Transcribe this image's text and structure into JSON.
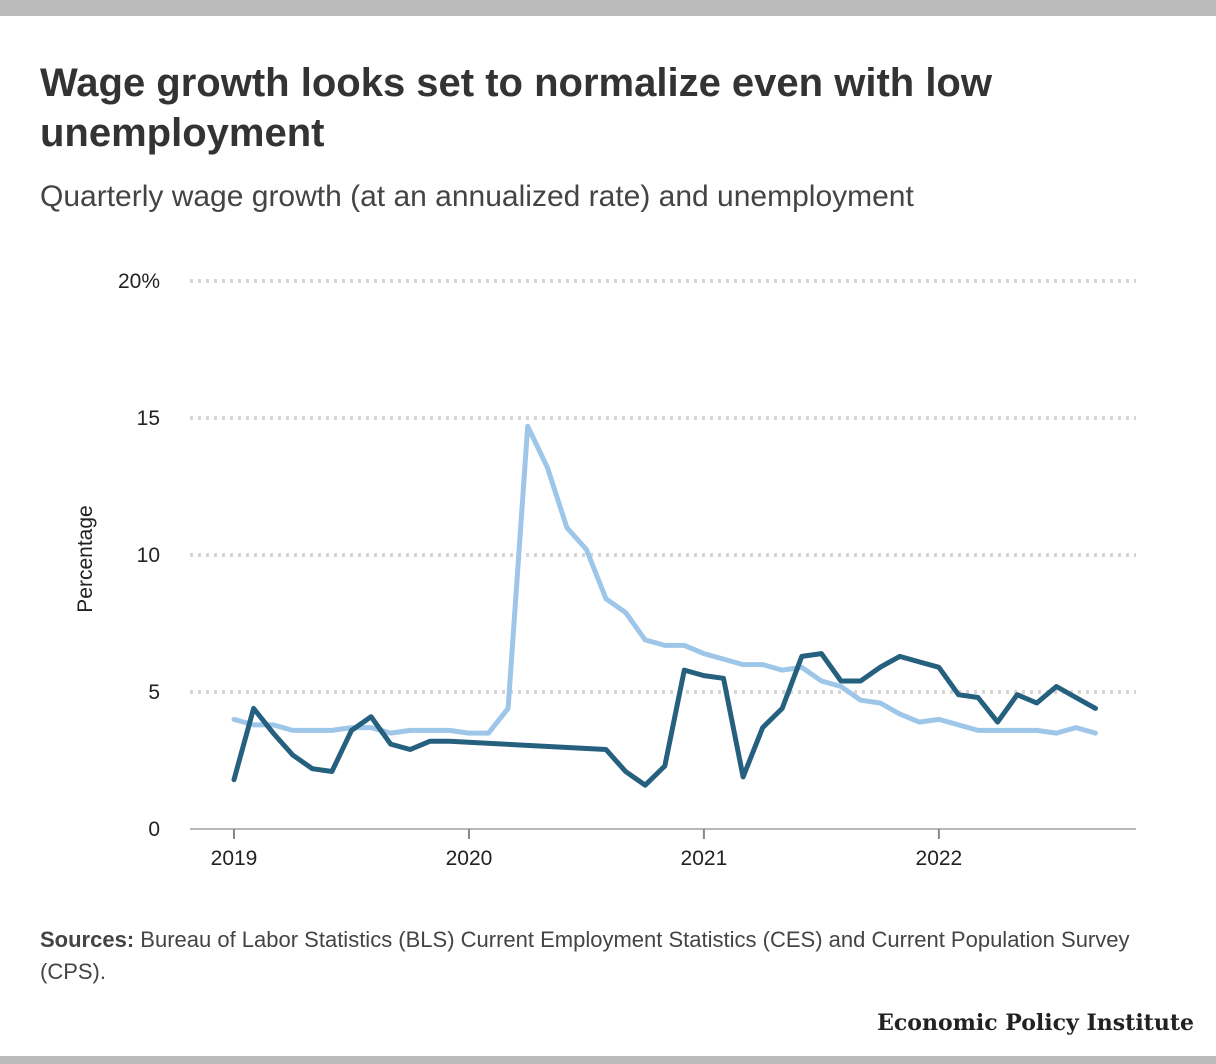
{
  "header": {
    "title": "Wage growth looks set to normalize even with low unemployment",
    "subtitle": "Quarterly wage growth (at an annualized rate) and unemployment"
  },
  "footer": {
    "sources_label": "Sources:",
    "sources_text": "Bureau of Labor Statistics (BLS) Current Employment Statistics (CES) and Current Population Survey (CPS).",
    "brand": "Economic Policy Institute"
  },
  "chart_data": {
    "type": "line",
    "title": "Wage growth looks set to normalize even with low unemployment",
    "subtitle": "Quarterly wage growth (at an annualized rate) and unemployment",
    "xlabel": "",
    "ylabel": "Percentage",
    "ylim": [
      0,
      20
    ],
    "yticks": [
      0,
      5,
      10,
      15,
      20
    ],
    "ytick_labels": [
      "0",
      "5",
      "10",
      "15",
      "20%"
    ],
    "xlim": [
      "2018-12",
      "2022-12"
    ],
    "xticks": [
      "2019-01",
      "2020-01",
      "2021-01",
      "2022-01"
    ],
    "xtick_labels": [
      "2019",
      "2020",
      "2021",
      "2022"
    ],
    "grid": true,
    "legend": "none",
    "series": [
      {
        "color": "#9dc6e8",
        "points": [
          [
            "2019-01",
            4.0
          ],
          [
            "2019-02",
            3.8
          ],
          [
            "2019-03",
            3.8
          ],
          [
            "2019-04",
            3.6
          ],
          [
            "2019-05",
            3.6
          ],
          [
            "2019-06",
            3.6
          ],
          [
            "2019-07",
            3.7
          ],
          [
            "2019-08",
            3.7
          ],
          [
            "2019-09",
            3.5
          ],
          [
            "2019-10",
            3.6
          ],
          [
            "2019-11",
            3.6
          ],
          [
            "2019-12",
            3.6
          ],
          [
            "2020-01",
            3.5
          ],
          [
            "2020-02",
            3.5
          ],
          [
            "2020-03",
            4.4
          ],
          [
            "2020-04",
            14.7
          ],
          [
            "2020-05",
            13.2
          ],
          [
            "2020-06",
            11.0
          ],
          [
            "2020-07",
            10.2
          ],
          [
            "2020-08",
            8.4
          ],
          [
            "2020-09",
            7.9
          ],
          [
            "2020-10",
            6.9
          ],
          [
            "2020-11",
            6.7
          ],
          [
            "2020-12",
            6.7
          ],
          [
            "2021-01",
            6.4
          ],
          [
            "2021-02",
            6.2
          ],
          [
            "2021-03",
            6.0
          ],
          [
            "2021-04",
            6.0
          ],
          [
            "2021-05",
            5.8
          ],
          [
            "2021-06",
            5.9
          ],
          [
            "2021-07",
            5.4
          ],
          [
            "2021-08",
            5.2
          ],
          [
            "2021-09",
            4.7
          ],
          [
            "2021-10",
            4.6
          ],
          [
            "2021-11",
            4.2
          ],
          [
            "2021-12",
            3.9
          ],
          [
            "2022-01",
            4.0
          ],
          [
            "2022-02",
            3.8
          ],
          [
            "2022-03",
            3.6
          ],
          [
            "2022-04",
            3.6
          ],
          [
            "2022-05",
            3.6
          ],
          [
            "2022-06",
            3.6
          ],
          [
            "2022-07",
            3.5
          ],
          [
            "2022-08",
            3.7
          ],
          [
            "2022-09",
            3.5
          ]
        ]
      },
      {
        "color": "#26607f",
        "points": [
          [
            "2019-01",
            1.8
          ],
          [
            "2019-02",
            4.4
          ],
          [
            "2019-03",
            3.5
          ],
          [
            "2019-04",
            2.7
          ],
          [
            "2019-05",
            2.2
          ],
          [
            "2019-06",
            2.1
          ],
          [
            "2019-07",
            3.6
          ],
          [
            "2019-08",
            4.1
          ],
          [
            "2019-09",
            3.1
          ],
          [
            "2019-10",
            2.9
          ],
          [
            "2019-11",
            3.2
          ],
          [
            "2019-12",
            3.2
          ],
          [
            "2020-08",
            2.9
          ],
          [
            "2020-09",
            2.1
          ],
          [
            "2020-10",
            1.6
          ],
          [
            "2020-11",
            2.3
          ],
          [
            "2020-12",
            5.8
          ],
          [
            "2021-01",
            5.6
          ],
          [
            "2021-02",
            5.5
          ],
          [
            "2021-03",
            1.9
          ],
          [
            "2021-04",
            3.7
          ],
          [
            "2021-05",
            4.4
          ],
          [
            "2021-06",
            6.3
          ],
          [
            "2021-07",
            6.4
          ],
          [
            "2021-08",
            5.4
          ],
          [
            "2021-09",
            5.4
          ],
          [
            "2021-10",
            5.9
          ],
          [
            "2021-11",
            6.3
          ],
          [
            "2021-12",
            6.1
          ],
          [
            "2022-01",
            5.9
          ],
          [
            "2022-02",
            4.9
          ],
          [
            "2022-03",
            4.8
          ],
          [
            "2022-04",
            3.9
          ],
          [
            "2022-05",
            4.9
          ],
          [
            "2022-06",
            4.6
          ],
          [
            "2022-07",
            5.2
          ],
          [
            "2022-08",
            4.8
          ],
          [
            "2022-09",
            4.4
          ]
        ]
      }
    ]
  }
}
